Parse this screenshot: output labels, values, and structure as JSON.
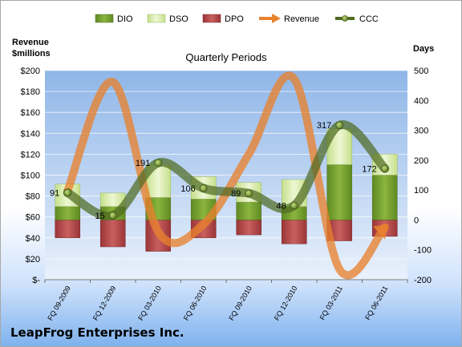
{
  "chart_data": {
    "type": "bar",
    "title": "Quarterly Periods",
    "company": "LeapFrog Enterprises Inc.",
    "left_axis_title": [
      "Revenue",
      "$millions"
    ],
    "right_axis_title": "Days",
    "categories": [
      "FQ 09-2009",
      "FQ 12-2009",
      "FQ 03-2010",
      "FQ 06-2010",
      "FQ 09-2010",
      "FQ 12-2010",
      "FQ 03-2011",
      "FQ 06-2011"
    ],
    "left_axis": {
      "min": 0,
      "max": 200,
      "step": 20,
      "tick_labels": [
        "$-",
        "$20",
        "$40",
        "$60",
        "$80",
        "$100",
        "$120",
        "$140",
        "$160",
        "$180",
        "$200"
      ]
    },
    "right_axis": {
      "min": -200,
      "max": 500,
      "step": 100,
      "tick_labels": [
        "-200",
        "-100",
        "0",
        "100",
        "200",
        "300",
        "400",
        "500"
      ]
    },
    "grid": true,
    "legend_position": "top",
    "series": [
      {
        "name": "DIO",
        "axis": "right",
        "kind": "stacked-bar",
        "color": "#6f9a2a",
        "values": [
          45,
          45,
          75,
          70,
          60,
          45,
          185,
          150
        ]
      },
      {
        "name": "DSO",
        "axis": "right",
        "kind": "stacked-bar",
        "color": "#dcefb0",
        "values": [
          75,
          45,
          110,
          75,
          65,
          90,
          120,
          70
        ]
      },
      {
        "name": "DPO",
        "axis": "right",
        "kind": "negative-bar",
        "color": "#b1484a",
        "values": [
          -60,
          -90,
          -105,
          -60,
          -50,
          -80,
          -70,
          -55
        ]
      },
      {
        "name": "Revenue",
        "axis": "left",
        "kind": "smooth-line",
        "color": "#e8822e",
        "values": [
          85,
          189,
          46,
          53,
          120,
          192,
          10,
          50
        ]
      },
      {
        "name": "CCC",
        "axis": "right",
        "kind": "smooth-line",
        "color": "#4f6b22",
        "values": [
          91,
          15,
          191,
          106,
          89,
          48,
          317,
          172
        ],
        "labels": [
          "91",
          "15",
          "191",
          "106",
          "89",
          "48",
          "317",
          "172"
        ]
      }
    ]
  }
}
